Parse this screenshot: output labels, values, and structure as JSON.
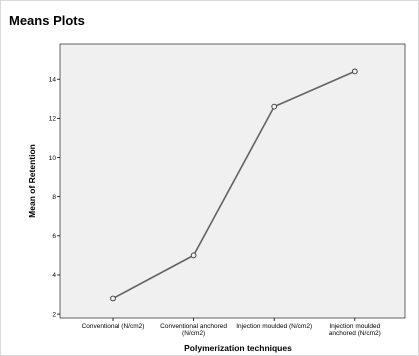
{
  "panel": {
    "title": "Means Plots"
  },
  "chart_data": {
    "type": "line",
    "title": "",
    "xlabel": "Polymerization techniques",
    "ylabel": "Mean of Retention",
    "categories": [
      [
        "Conventional (N/cm2)"
      ],
      [
        "Conventional anchored",
        "(N/cm2)"
      ],
      [
        "Injection moulded (N/cm2)"
      ],
      [
        "Injection moulded",
        "anchored (N/cm2)"
      ]
    ],
    "values": [
      2.8,
      5.0,
      12.6,
      14.4
    ],
    "yticks": [
      2,
      4,
      6,
      8,
      10,
      12,
      14
    ],
    "ylim": [
      1.8,
      15.8
    ],
    "grid": false,
    "legend": "none",
    "colors": {
      "plot_background": "#f0f0f0",
      "line": "#636363",
      "marker_fill": "#f0f0f0",
      "axis": "#000000"
    }
  }
}
